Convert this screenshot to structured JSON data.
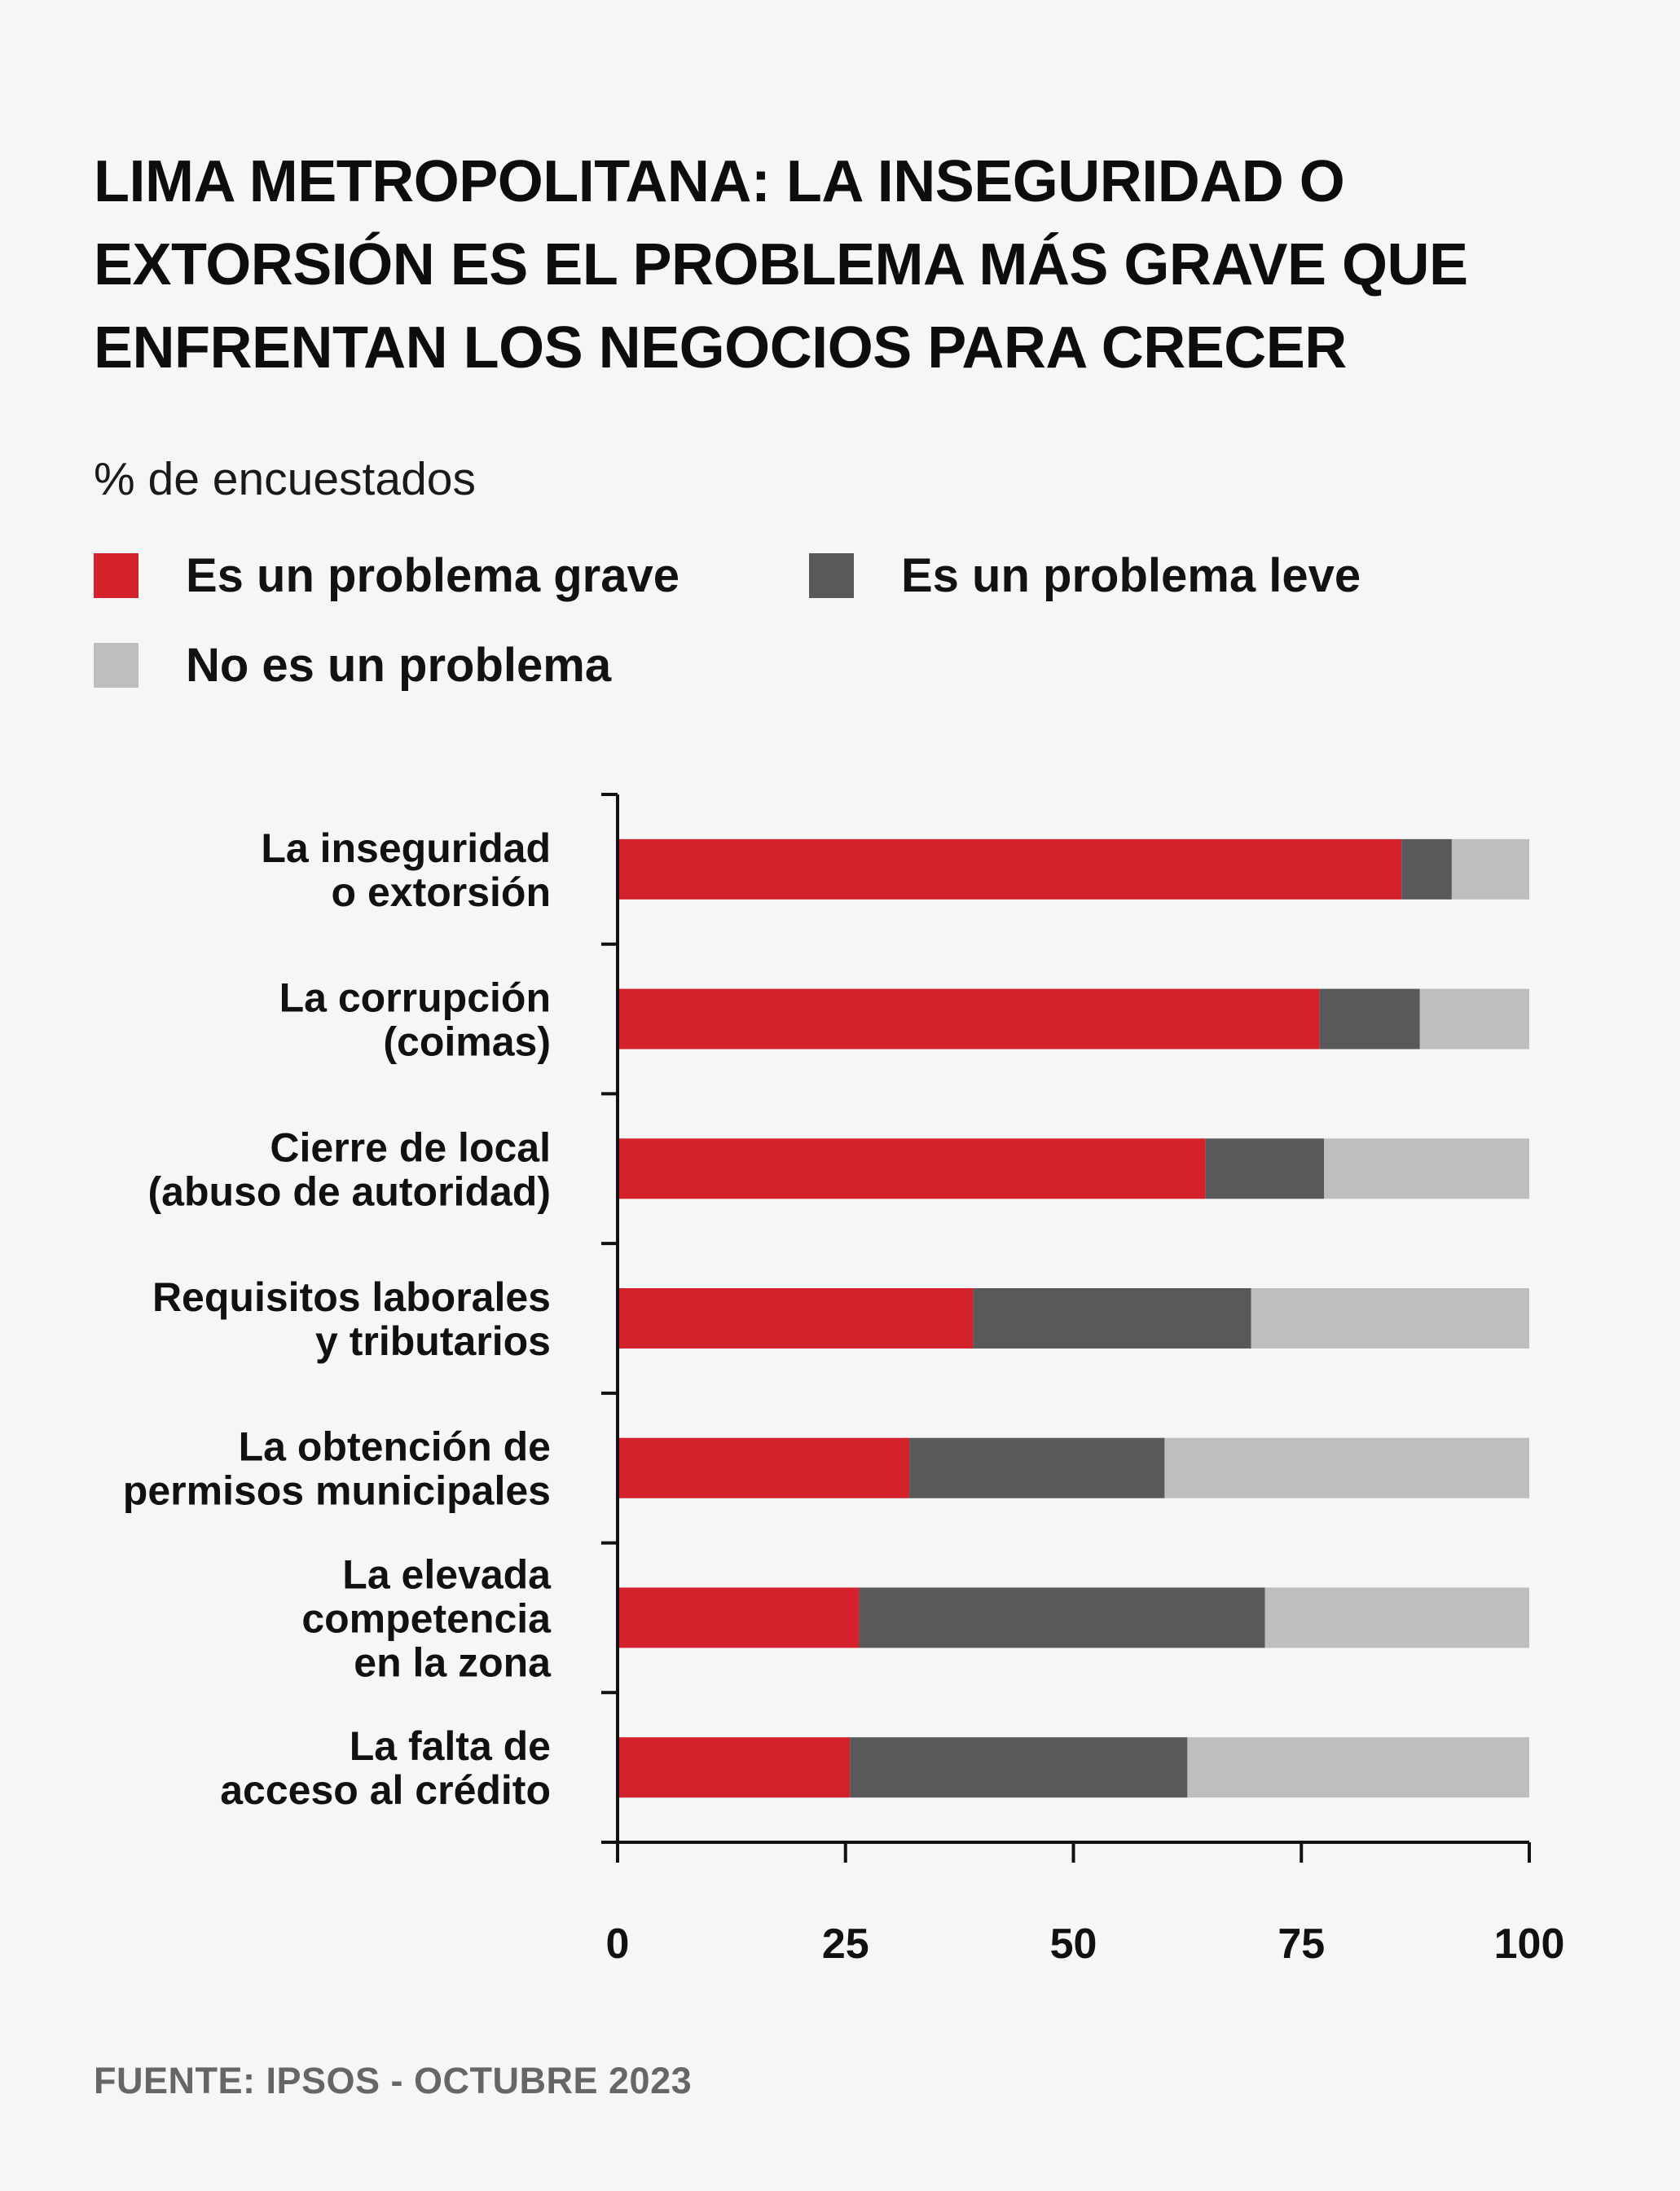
{
  "title_lines": [
    "LIMA METROPOLITANA: LA INSEGURIDAD O",
    "EXTORSIÓN ES EL PROBLEMA MÁS GRAVE QUE",
    "ENFRENTAN LOS NEGOCIOS PARA CRECER"
  ],
  "subtitle": "% de encuestados",
  "legend": [
    {
      "label": "Es un problema grave",
      "color": "#d3222b"
    },
    {
      "label": "Es un problema leve",
      "color": "#58595b"
    },
    {
      "label": "No es un problema",
      "color": "#bdbec0"
    }
  ],
  "source": "FUENTE: IPSOS - OCTUBRE 2023",
  "chart_data": {
    "type": "bar",
    "orientation": "horizontal",
    "stacked": true,
    "categories": [
      [
        "La inseguridad",
        "o extorsión"
      ],
      [
        "La corrupción",
        "(coimas)"
      ],
      [
        "Cierre de local",
        "(abuso de autoridad)"
      ],
      [
        "Requisitos laborales",
        "y tributarios"
      ],
      [
        "La obtención de",
        "permisos municipales"
      ],
      [
        "La elevada",
        "competencia",
        "en la zona"
      ],
      [
        "La falta de",
        "acceso al crédito"
      ]
    ],
    "series": [
      {
        "name": "Es un problema grave",
        "color": "#d3222b",
        "values": [
          86,
          77,
          64.5,
          39,
          32,
          26.5,
          25.5
        ]
      },
      {
        "name": "Es un problema leve",
        "color": "#58595b",
        "values": [
          5.5,
          11,
          13,
          30.5,
          28,
          44.5,
          37
        ]
      },
      {
        "name": "No es un problema",
        "color": "#bdbec0",
        "values": [
          8.5,
          12,
          22.5,
          30.5,
          40,
          29,
          37.5
        ]
      }
    ],
    "xlim": [
      0,
      100
    ],
    "xticks": [
      0,
      25,
      50,
      75,
      100
    ],
    "grid": false
  }
}
